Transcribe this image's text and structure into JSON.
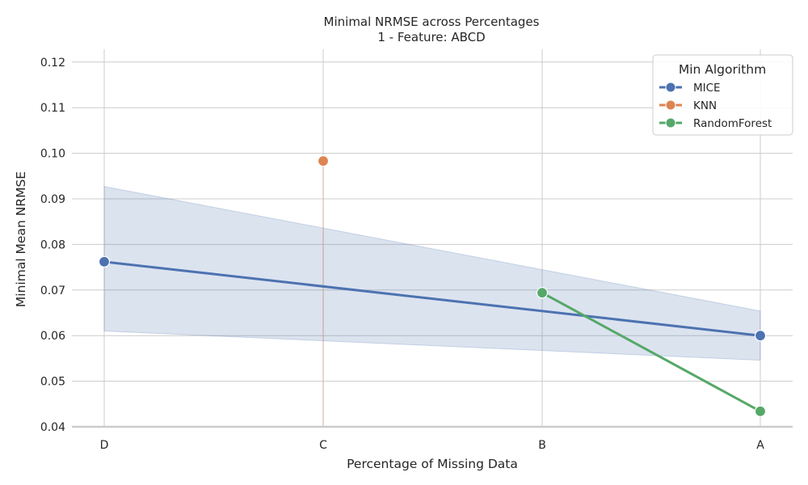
{
  "chart_data": {
    "type": "line",
    "title": "Minimal NRMSE across Percentages",
    "subtitle": "1 - Feature: ABCD",
    "xlabel": "Percentage of Missing Data",
    "ylabel": "Minimal Mean NRMSE",
    "categories": [
      "D",
      "C",
      "B",
      "A"
    ],
    "ylim": [
      0.04,
      0.1228
    ],
    "yticks": [
      "0.04",
      "0.05",
      "0.06",
      "0.07",
      "0.08",
      "0.09",
      "0.10",
      "0.11",
      "0.12"
    ],
    "grid": true,
    "legend": {
      "title": "Min Algorithm",
      "placement": "top-right"
    },
    "series": [
      {
        "name": "MICE",
        "color": "#4c72b0",
        "points": [
          [
            "D",
            0.0762
          ],
          [
            "A",
            0.06
          ]
        ],
        "ci_band": [
          {
            "x": "D",
            "low": 0.061,
            "high": 0.0927
          },
          {
            "x": "A",
            "low": 0.0546,
            "high": 0.0654
          }
        ]
      },
      {
        "name": "KNN",
        "color": "#dd8452",
        "points": [
          [
            "C",
            0.0983
          ]
        ]
      },
      {
        "name": "RandomForest",
        "color": "#55a868",
        "points": [
          [
            "B",
            0.0694
          ],
          [
            "A",
            0.0434
          ]
        ]
      }
    ]
  }
}
